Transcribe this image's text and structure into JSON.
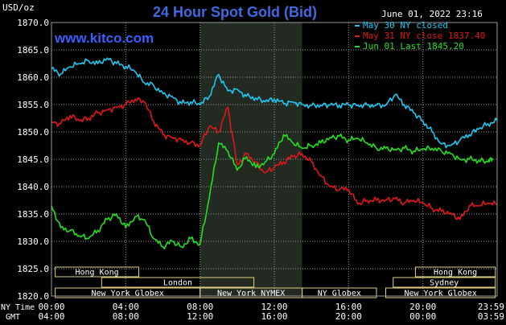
{
  "title": "24 Hour Spot Gold (Bid)",
  "watermark": "www.kitco.com",
  "datetime": "June 01, 2022 23:16",
  "y_unit": "USD/oz",
  "x_row_labels": [
    "NY Time",
    "GMT"
  ],
  "market_labels": {
    "hong_kong": "Hong Kong",
    "london": "London",
    "new_york_globex": "New York Globex",
    "new_york_nymex": "New York NYMEX",
    "ny_globex": "NY Globex",
    "sydney": "Sydney"
  },
  "colors": {
    "background": "#000000",
    "grid": "#9a9a9a",
    "highlight": "#222a22",
    "title": "#4169e1",
    "watermark": "#3a5fff",
    "may30": "#1ec8f0",
    "may31": "#e01818",
    "jun01": "#22e022",
    "text": "#ffffff"
  },
  "chart_data": {
    "type": "line",
    "title": "24 Hour Spot Gold (Bid)",
    "ylabel": "USD/oz",
    "ylim": [
      1820,
      1870
    ],
    "yticks": [
      "1870.0",
      "1865.0",
      "1860.0",
      "1855.0",
      "1850.0",
      "1845.0",
      "1840.0",
      "1835.0",
      "1830.0",
      "1825.0",
      "1820.0"
    ],
    "xlim": [
      0,
      24
    ],
    "x_ticks_ny": [
      "00:00",
      "04:00",
      "08:00",
      "12:00",
      "16:00",
      "20:00",
      "23:59"
    ],
    "x_ticks_gmt": [
      "04:00",
      "08:00",
      "12:00",
      "16:00",
      "20:00",
      "00:00",
      "03:59"
    ],
    "grid": true,
    "legend_position": "top-right",
    "series": [
      {
        "name": "May 30 NY closed",
        "color": "#1ec8f0",
        "x": [
          0,
          0.5,
          1,
          1.5,
          2,
          2.5,
          3,
          3.5,
          4,
          4.5,
          5,
          5.5,
          6,
          6.5,
          7,
          7.5,
          8,
          8.5,
          9,
          9.5,
          10,
          10.5,
          11,
          11.5,
          12,
          12.5,
          13,
          13.5,
          14,
          14.5,
          15,
          15.5,
          16,
          16.5,
          17,
          17.5,
          18,
          18.5,
          19,
          19.5,
          20,
          20.5,
          21,
          21.5,
          22,
          22.5,
          23,
          23.5,
          24
        ],
        "values": [
          1861.5,
          1860.6,
          1861.9,
          1862.5,
          1863.0,
          1862.5,
          1863.5,
          1862.5,
          1862.0,
          1861.0,
          1859.0,
          1858.5,
          1857.0,
          1856.5,
          1855.2,
          1855.5,
          1855.0,
          1856.5,
          1860.5,
          1857.5,
          1857.8,
          1856.5,
          1856.2,
          1855.5,
          1856.0,
          1855.2,
          1855.5,
          1855.0,
          1854.8,
          1854.9,
          1854.9,
          1854.9,
          1854.9,
          1854.9,
          1854.9,
          1854.9,
          1854.9,
          1856.8,
          1855.0,
          1853.5,
          1852.0,
          1850.0,
          1847.8,
          1847.5,
          1848.5,
          1849.5,
          1850.5,
          1851.5,
          1852.0
        ]
      },
      {
        "name": "May 31 NY close 1837.40",
        "color": "#e01818",
        "x": [
          0,
          0.5,
          1,
          1.5,
          2,
          2.5,
          3,
          3.5,
          4,
          4.5,
          5,
          5.5,
          6,
          6.5,
          7,
          7.5,
          8,
          8.5,
          9,
          9.5,
          10,
          10.5,
          11,
          11.5,
          12,
          12.5,
          13,
          13.5,
          14,
          14.5,
          15,
          15.5,
          16,
          16.5,
          17,
          17.5,
          18,
          18.5,
          19,
          19.5,
          20,
          20.5,
          21,
          21.5,
          22,
          22.5,
          23,
          23.5,
          24
        ],
        "values": [
          1851.8,
          1851.5,
          1853.0,
          1852.0,
          1852.5,
          1853.5,
          1854.0,
          1854.5,
          1855.0,
          1856.0,
          1855.5,
          1852.0,
          1849.5,
          1849.0,
          1848.5,
          1848.0,
          1847.5,
          1851.0,
          1850.0,
          1854.5,
          1844.0,
          1846.0,
          1844.5,
          1842.5,
          1843.5,
          1844.5,
          1845.5,
          1846.0,
          1844.5,
          1842.0,
          1840.0,
          1839.5,
          1839.5,
          1836.8,
          1837.5,
          1837.5,
          1837.6,
          1837.8,
          1837.0,
          1837.5,
          1837.0,
          1836.0,
          1835.5,
          1835.2,
          1834.0,
          1836.5,
          1836.5,
          1837.0,
          1836.7
        ]
      },
      {
        "name": "Jun 01 Last 1845.20",
        "color": "#22e022",
        "x": [
          0,
          0.5,
          1,
          1.5,
          2,
          2.5,
          3,
          3.5,
          4,
          4.5,
          5,
          5.5,
          6,
          6.5,
          7,
          7.5,
          8,
          8.5,
          9,
          9.5,
          10,
          10.5,
          11,
          11.5,
          12,
          12.5,
          13,
          13.5,
          14,
          14.5,
          15,
          15.5,
          16,
          16.5,
          17,
          17.5,
          18,
          18.5,
          19,
          19.5,
          20,
          20.5,
          21,
          21.5,
          22,
          22.5,
          23,
          23.5,
          23.75
        ],
        "values": [
          1836.5,
          1832.5,
          1832.0,
          1831.0,
          1830.5,
          1832.0,
          1834.0,
          1835.0,
          1832.5,
          1834.5,
          1834.0,
          1830.5,
          1829.0,
          1830.0,
          1829.0,
          1830.5,
          1829.5,
          1838.0,
          1848.0,
          1846.5,
          1843.0,
          1845.5,
          1843.5,
          1844.5,
          1846.0,
          1849.5,
          1848.0,
          1847.0,
          1847.5,
          1848.0,
          1849.0,
          1849.2,
          1848.5,
          1848.8,
          1848.0,
          1847.0,
          1847.0,
          1846.8,
          1847.0,
          1846.5,
          1846.8,
          1847.0,
          1846.5,
          1846.0,
          1845.0,
          1845.0,
          1844.8,
          1844.5,
          1845.2
        ]
      }
    ]
  },
  "sessions": [
    {
      "label_key": "hong_kong",
      "row": 0,
      "start": 0.2,
      "end": 4.7
    },
    {
      "label_key": "hong_kong",
      "row": 0,
      "start": 19.6,
      "end": 23.9
    },
    {
      "label_key": "london",
      "row": 1,
      "start": 2.7,
      "end": 10.9
    },
    {
      "label_key": "sydney",
      "row": 1,
      "start": 18.4,
      "end": 23.9
    },
    {
      "label_key": "new_york_globex",
      "row": 2,
      "start": 0.2,
      "end": 8.0
    },
    {
      "label_key": "new_york_nymex",
      "row": 2,
      "start": 8.0,
      "end": 13.5
    },
    {
      "label_key": "ny_globex",
      "row": 2,
      "start": 13.5,
      "end": 17.5
    },
    {
      "label_key": "new_york_globex",
      "row": 2,
      "start": 18.0,
      "end": 23.9
    }
  ],
  "highlight": {
    "start": 8.0,
    "end": 13.5
  }
}
